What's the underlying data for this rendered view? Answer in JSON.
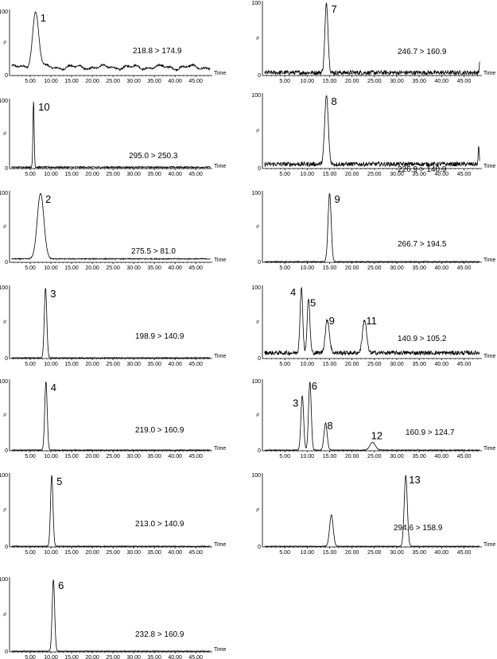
{
  "chart_data": {
    "type": "line",
    "xlabel": "Time",
    "y_ticks": [
      "0",
      "100"
    ],
    "y_percent_label": "%",
    "xlim": [
      0,
      49
    ],
    "ylim": [
      0,
      100
    ],
    "x_ticks": [
      "5.00",
      "10.00",
      "15.00",
      "20.00",
      "25.00",
      "30.00",
      "35.00",
      "40.00",
      "45.00"
    ],
    "panels": [
      {
        "transition": "218.8 > 174.9",
        "baseline": 13,
        "noise": 3,
        "wavy": true,
        "peaks": [
          {
            "label": "1",
            "rt": 6.3,
            "height": 100,
            "width": 0.75
          }
        ],
        "spikes": []
      },
      {
        "transition": "246.7 > 160.9",
        "baseline": 4,
        "noise": 6,
        "peaks": [
          {
            "label": "7",
            "rt": 14.3,
            "height": 100,
            "width": 0.35
          }
        ],
        "spikes": [
          {
            "rt": 48.6,
            "height": 25
          }
        ]
      },
      {
        "transition": "295.0 > 250.3",
        "baseline": 2,
        "noise": 2,
        "peaks": [
          {
            "label": "10",
            "rt": 5.8,
            "height": 100,
            "width": 0.15
          }
        ],
        "spikes": []
      },
      {
        "transition": "226.9 > 140.9",
        "baseline": 6,
        "noise": 6,
        "peaks": [
          {
            "label": "8",
            "rt": 14.3,
            "height": 100,
            "width": 0.4
          }
        ],
        "spikes": [
          {
            "rt": 48.3,
            "height": 24
          }
        ]
      },
      {
        "transition": "275.5 > 81.0",
        "baseline": 5,
        "noise": 1.5,
        "peaks": [
          {
            "label": "2",
            "rt": 7.5,
            "height": 100,
            "width": 0.8
          }
        ],
        "spikes": []
      },
      {
        "transition": "266.7 > 194.5",
        "baseline": 1,
        "noise": 1,
        "peaks": [
          {
            "label": "9",
            "rt": 15.0,
            "height": 100,
            "width": 0.35
          }
        ],
        "spikes": []
      },
      {
        "transition": "198.9 > 140.9",
        "baseline": 1,
        "noise": 1,
        "peaks": [
          {
            "label": "3",
            "rt": 8.7,
            "height": 100,
            "width": 0.3
          }
        ],
        "spikes": []
      },
      {
        "transition": "140.9 > 105.2",
        "baseline": 8,
        "noise": 6,
        "peaks": [
          {
            "label": "4",
            "rt": 8.7,
            "height": 100,
            "width": 0.3
          },
          {
            "label": "5",
            "rt": 10.3,
            "height": 85,
            "width": 0.3
          },
          {
            "label": "9",
            "rt": 14.5,
            "height": 55,
            "width": 0.45
          },
          {
            "label": "11",
            "rt": 22.8,
            "height": 55,
            "width": 0.45
          }
        ],
        "spikes": []
      },
      {
        "transition": "219.0 > 160.9",
        "baseline": 1,
        "noise": 1,
        "peaks": [
          {
            "label": "4",
            "rt": 8.8,
            "height": 100,
            "width": 0.3
          }
        ],
        "spikes": []
      },
      {
        "transition": "160.9 > 124.7",
        "baseline": 1,
        "noise": 1,
        "peaks": [
          {
            "label": "3",
            "rt": 8.9,
            "height": 80,
            "width": 0.3
          },
          {
            "label": "6",
            "rt": 10.6,
            "height": 100,
            "width": 0.3
          },
          {
            "label": "8",
            "rt": 14.1,
            "height": 40,
            "width": 0.35
          },
          {
            "label": "12",
            "rt": 24.6,
            "height": 12,
            "width": 0.6
          }
        ],
        "spikes": []
      },
      {
        "transition": "213.0 > 140.9",
        "baseline": 1,
        "noise": 0.8,
        "peaks": [
          {
            "label": "5",
            "rt": 10.2,
            "height": 100,
            "width": 0.3
          }
        ],
        "spikes": []
      },
      {
        "transition": "294.6 > 158.9",
        "baseline": 1,
        "noise": 0.6,
        "peaks": [
          {
            "label": "",
            "rt": 15.4,
            "height": 45,
            "width": 0.4
          },
          {
            "label": "13",
            "rt": 32.0,
            "height": 100,
            "width": 0.35
          }
        ],
        "spikes": []
      },
      {
        "transition": "232.8 > 160.9",
        "baseline": 1,
        "noise": 0.8,
        "peaks": [
          {
            "label": "6",
            "rt": 10.6,
            "height": 100,
            "width": 0.3
          }
        ],
        "spikes": []
      }
    ]
  }
}
